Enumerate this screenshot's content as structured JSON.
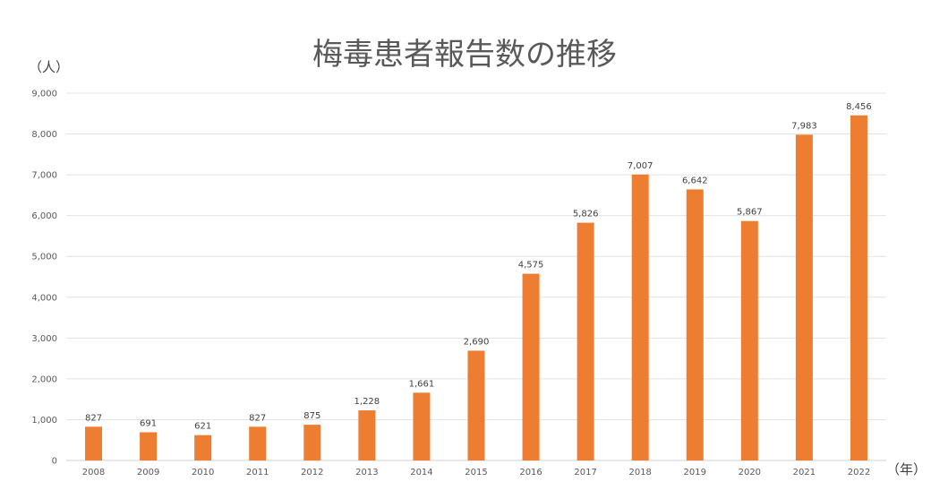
{
  "chart_data": {
    "type": "bar",
    "title": "梅毒患者報告数の推移",
    "ylabel": "（人）",
    "xlabel": "（年）",
    "categories": [
      "2008",
      "2009",
      "2010",
      "2011",
      "2012",
      "2013",
      "2014",
      "2015",
      "2016",
      "2017",
      "2018",
      "2019",
      "2020",
      "2021",
      "2022"
    ],
    "values": [
      827,
      691,
      621,
      827,
      875,
      1228,
      1661,
      2690,
      4575,
      5826,
      7007,
      6642,
      5867,
      7983,
      8456
    ],
    "value_labels": [
      "827",
      "691",
      "621",
      "827",
      "875",
      "1,228",
      "1,661",
      "2,690",
      "4,575",
      "5,826",
      "7,007",
      "6,642",
      "5,867",
      "7,983",
      "8,456"
    ],
    "ylim": [
      0,
      9000
    ],
    "yticks": [
      0,
      1000,
      2000,
      3000,
      4000,
      5000,
      6000,
      7000,
      8000,
      9000
    ],
    "ytick_labels": [
      "0",
      "1,000",
      "2,000",
      "3,000",
      "4,000",
      "5,000",
      "6,000",
      "7,000",
      "8,000",
      "9,000"
    ],
    "grid": true,
    "legend": "none",
    "bar_color": "#ed7d31"
  }
}
